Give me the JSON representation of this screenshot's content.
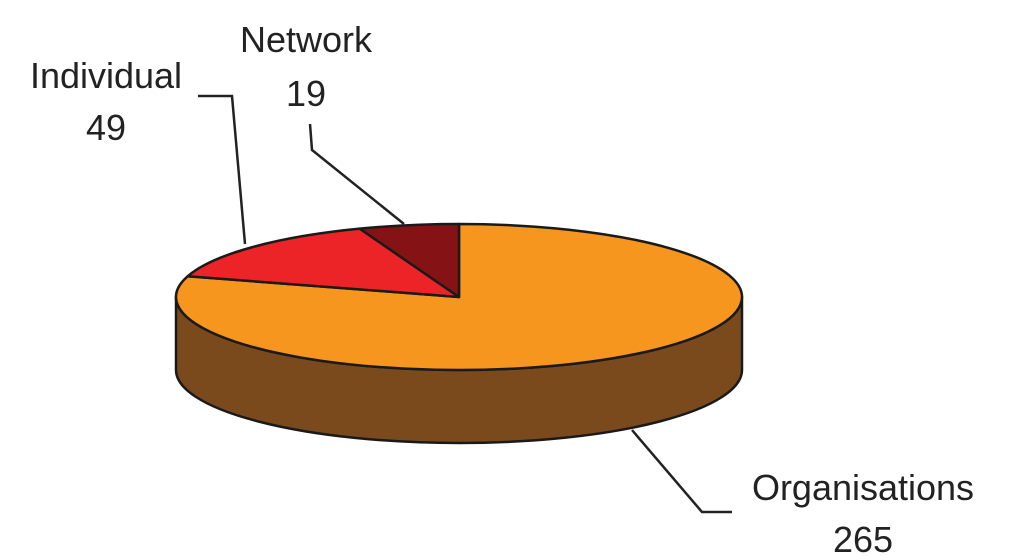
{
  "chart_data": {
    "type": "pie",
    "title": "",
    "three_d": true,
    "categories": [
      "Organisations",
      "Individual",
      "Network"
    ],
    "values": [
      265,
      49,
      19
    ],
    "colors": {
      "Organisations": {
        "top": "#f7961e",
        "side": "#7a4a1c"
      },
      "Individual": {
        "top": "#ec2327",
        "side": "#8a1414"
      },
      "Network": {
        "top": "#851315",
        "side": "#4a0a0b"
      }
    },
    "data_labels": [
      {
        "category": "Organisations",
        "name": "Organisations",
        "value": "265"
      },
      {
        "category": "Individual",
        "name": "Individual",
        "value": "49"
      },
      {
        "category": "Network",
        "name": "Network",
        "value": "19"
      }
    ],
    "legend": "none"
  }
}
